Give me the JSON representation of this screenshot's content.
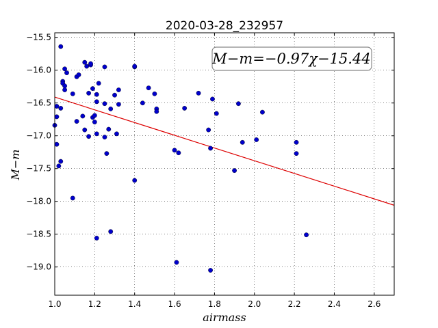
{
  "chart_data": {
    "type": "scatter",
    "title": "2020-03-28_232957",
    "xlabel": "airmass",
    "ylabel": "M−m",
    "xlim": [
      1.0,
      2.7
    ],
    "ylim": [
      -19.43,
      -15.43
    ],
    "y_inverted": true,
    "grid": true,
    "x_ticks": [
      1.0,
      1.2,
      1.4,
      1.6,
      1.8,
      2.0,
      2.2,
      2.4,
      2.6
    ],
    "x_tick_labels": [
      "1.0",
      "1.2",
      "1.4",
      "1.6",
      "1.8",
      "2.0",
      "2.2",
      "2.4",
      "2.6"
    ],
    "y_ticks": [
      -15.5,
      -16.0,
      -16.5,
      -17.0,
      -17.5,
      -18.0,
      -18.5,
      -19.0
    ],
    "y_tick_labels": [
      "−15.5",
      "−16.0",
      "−16.5",
      "−17.0",
      "−17.5",
      "−18.0",
      "−18.5",
      "−19.0"
    ],
    "annotation": "M−m=−0.97χ−15.44",
    "point_color": "#0000cc",
    "fit_color": "#dd0000",
    "fit": {
      "slope": -0.97,
      "intercept": -15.44
    },
    "points": [
      [
        1.0,
        -16.84
      ],
      [
        1.01,
        -16.55
      ],
      [
        1.01,
        -16.71
      ],
      [
        1.01,
        -17.13
      ],
      [
        1.02,
        -17.46
      ],
      [
        1.03,
        -17.39
      ],
      [
        1.03,
        -16.58
      ],
      [
        1.03,
        -15.64
      ],
      [
        1.04,
        -16.17
      ],
      [
        1.04,
        -16.2
      ],
      [
        1.05,
        -16.24
      ],
      [
        1.05,
        -16.3
      ],
      [
        1.05,
        -15.98
      ],
      [
        1.06,
        -16.04
      ],
      [
        1.09,
        -16.36
      ],
      [
        1.09,
        -17.95
      ],
      [
        1.11,
        -16.1
      ],
      [
        1.11,
        -16.78
      ],
      [
        1.12,
        -16.07
      ],
      [
        1.14,
        -16.7
      ],
      [
        1.15,
        -16.91
      ],
      [
        1.15,
        -15.88
      ],
      [
        1.16,
        -15.94
      ],
      [
        1.17,
        -17.01
      ],
      [
        1.17,
        -16.35
      ],
      [
        1.18,
        -15.92
      ],
      [
        1.18,
        -15.9
      ],
      [
        1.19,
        -16.28
      ],
      [
        1.19,
        -16.72
      ],
      [
        1.2,
        -16.69
      ],
      [
        1.2,
        -16.79
      ],
      [
        1.21,
        -16.97
      ],
      [
        1.21,
        -16.37
      ],
      [
        1.21,
        -18.56
      ],
      [
        1.21,
        -16.48
      ],
      [
        1.22,
        -16.2
      ],
      [
        1.25,
        -15.95
      ],
      [
        1.25,
        -16.51
      ],
      [
        1.25,
        -17.02
      ],
      [
        1.26,
        -17.27
      ],
      [
        1.27,
        -16.9
      ],
      [
        1.28,
        -18.46
      ],
      [
        1.28,
        -16.59
      ],
      [
        1.3,
        -16.38
      ],
      [
        1.31,
        -16.97
      ],
      [
        1.32,
        -16.3
      ],
      [
        1.32,
        -16.52
      ],
      [
        1.4,
        -15.95
      ],
      [
        1.4,
        -15.94
      ],
      [
        1.4,
        -17.68
      ],
      [
        1.44,
        -16.5
      ],
      [
        1.47,
        -16.27
      ],
      [
        1.5,
        -16.36
      ],
      [
        1.51,
        -16.59
      ],
      [
        1.51,
        -16.63
      ],
      [
        1.6,
        -17.22
      ],
      [
        1.61,
        -18.93
      ],
      [
        1.62,
        -17.26
      ],
      [
        1.65,
        -16.58
      ],
      [
        1.72,
        -16.35
      ],
      [
        1.77,
        -16.91
      ],
      [
        1.78,
        -17.19
      ],
      [
        1.78,
        -19.05
      ],
      [
        1.79,
        -16.44
      ],
      [
        1.81,
        -16.66
      ],
      [
        1.9,
        -17.53
      ],
      [
        1.92,
        -16.51
      ],
      [
        1.94,
        -17.1
      ],
      [
        2.01,
        -17.06
      ],
      [
        2.04,
        -16.64
      ],
      [
        2.21,
        -17.1
      ],
      [
        2.21,
        -17.27
      ],
      [
        2.26,
        -18.51
      ]
    ]
  }
}
